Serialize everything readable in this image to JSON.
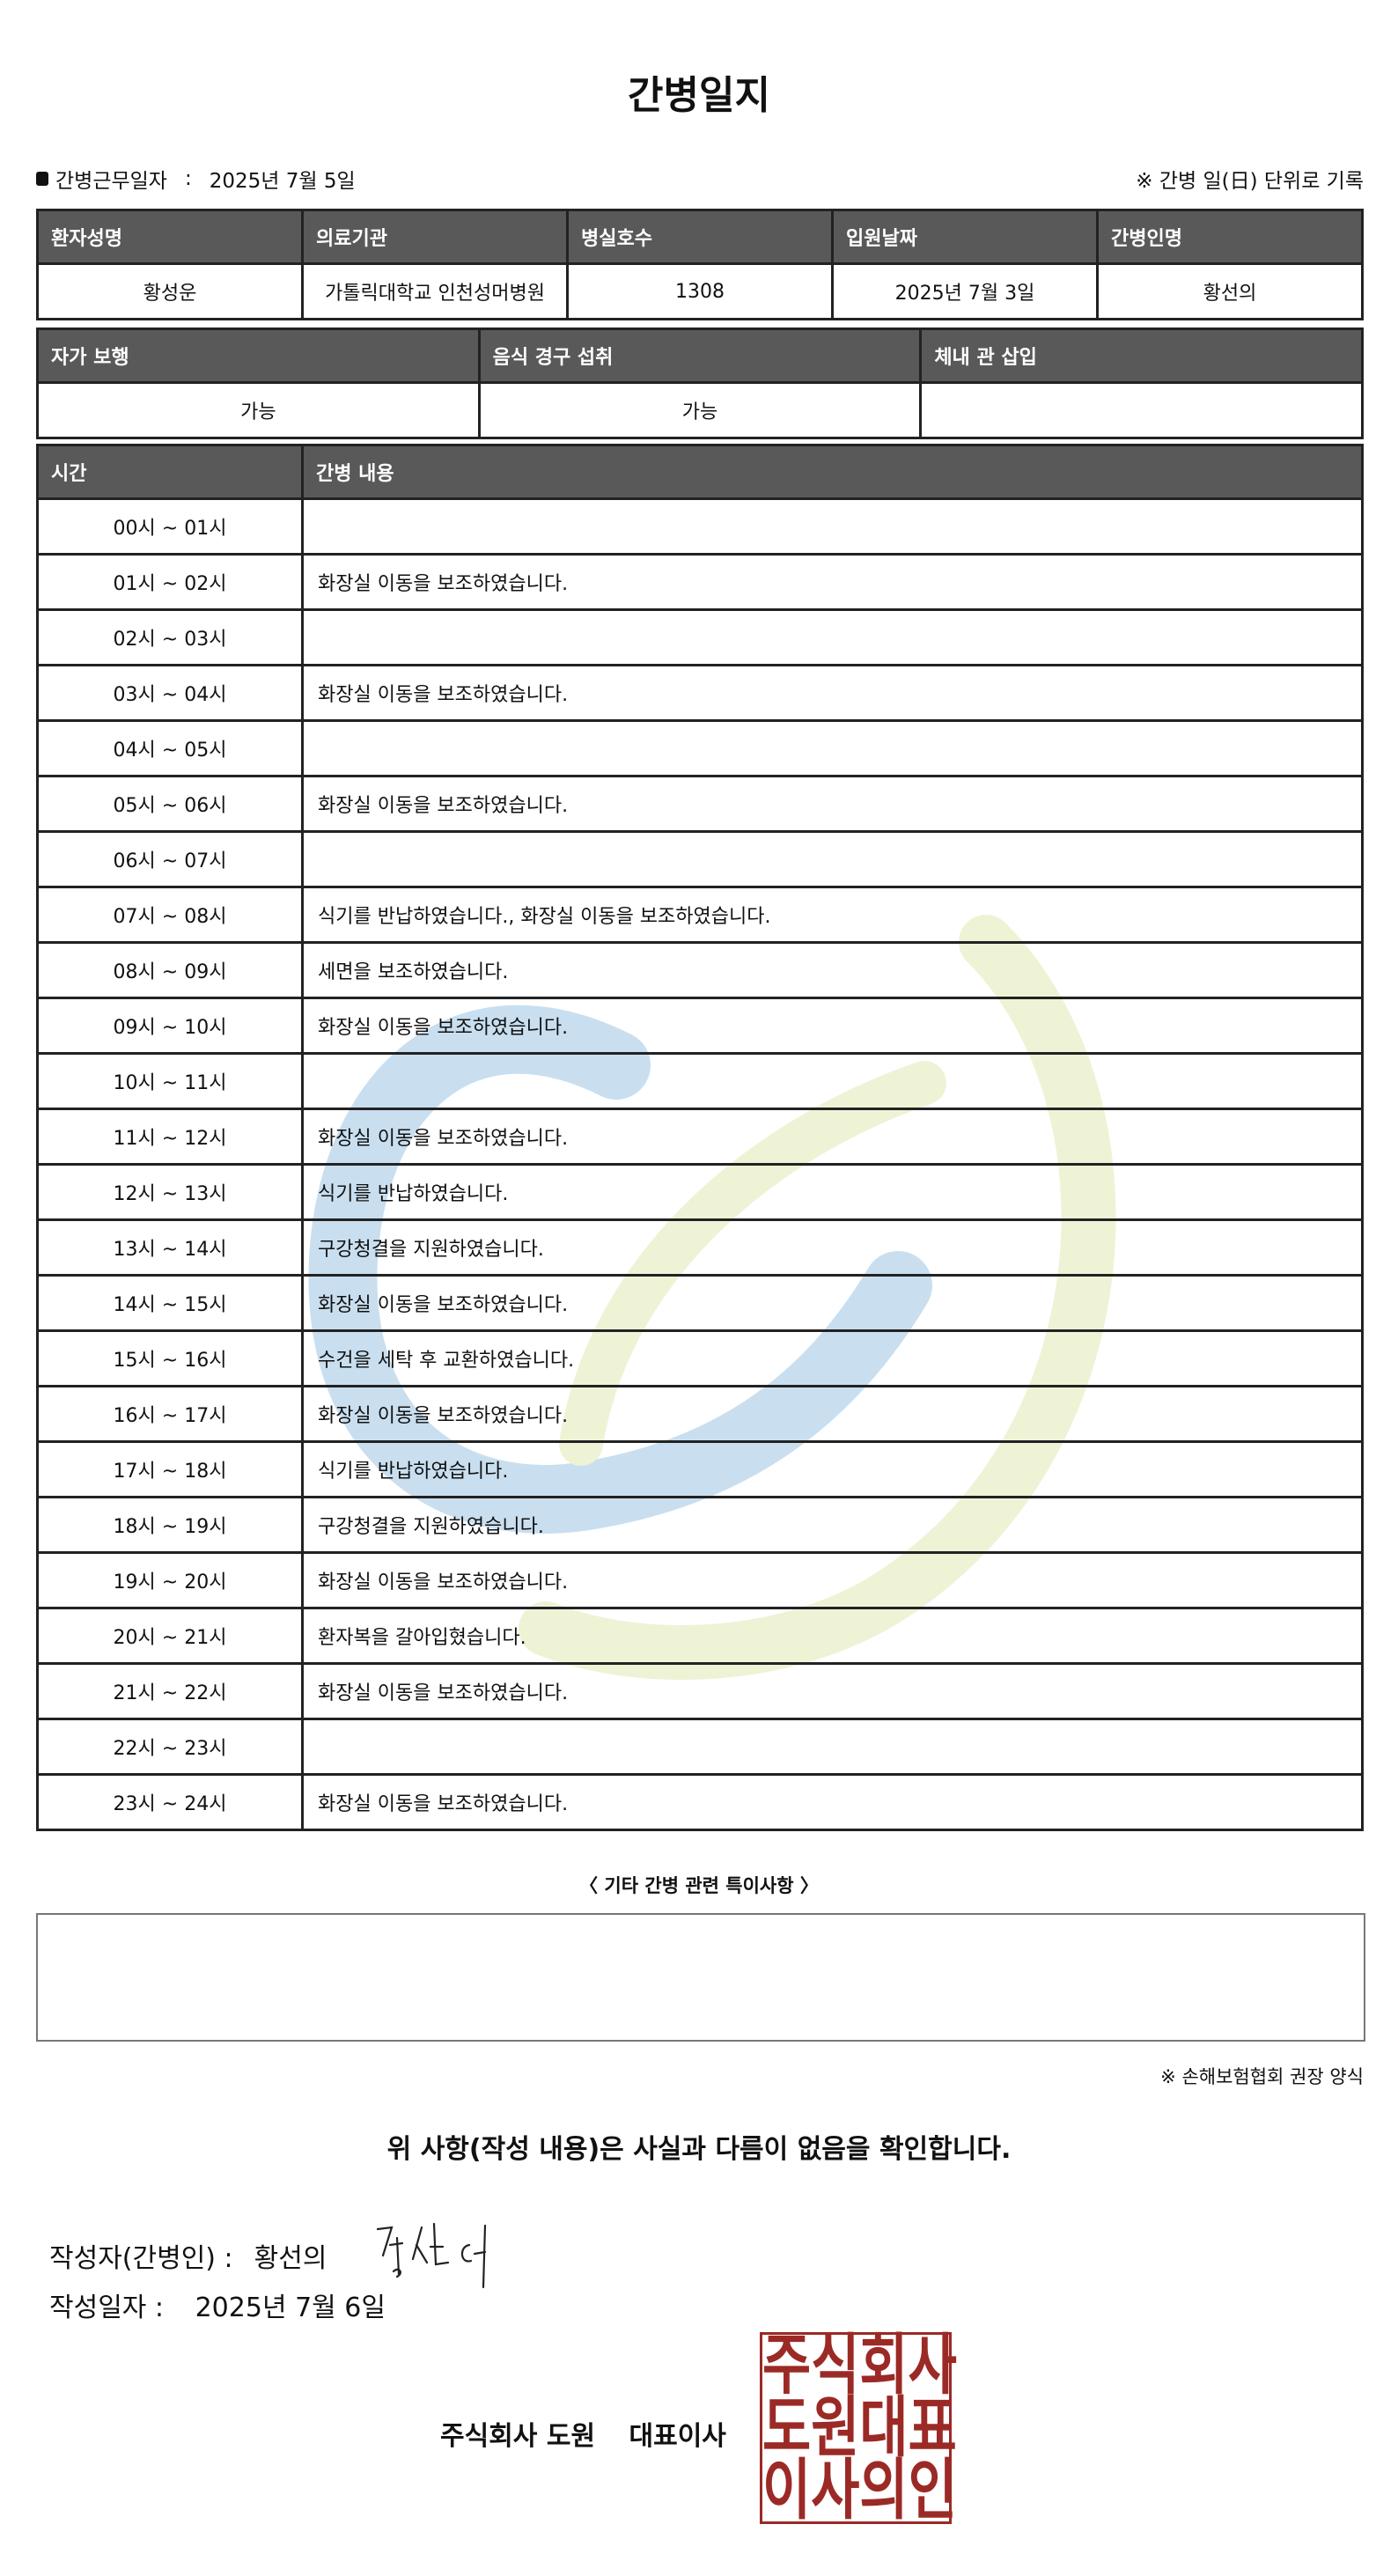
{
  "title": "간병일지",
  "info": {
    "work_date_label": "간병근무일자",
    "work_date": "2025년 7월 5일",
    "note": "※ 간병 일(日) 단위로 기록"
  },
  "patient_table": {
    "headers": [
      "환자성명",
      "의료기관",
      "병실호수",
      "입원날짜",
      "간병인명"
    ],
    "values": [
      "황성운",
      "가톨릭대학교 인천성머병원",
      "1308",
      "2025년 7월 3일",
      "황선의"
    ]
  },
  "status_table": {
    "headers": [
      "자가 보행",
      "음식 경구 섭취",
      "체내 관 삽입"
    ],
    "values": [
      "가능",
      "가능",
      ""
    ]
  },
  "care_table": {
    "headers": [
      "시간",
      "간병 내용"
    ],
    "rows": [
      {
        "time": "00시 ~ 01시",
        "content": ""
      },
      {
        "time": "01시 ~ 02시",
        "content": "화장실 이동을 보조하였습니다."
      },
      {
        "time": "02시 ~ 03시",
        "content": ""
      },
      {
        "time": "03시 ~ 04시",
        "content": "화장실 이동을 보조하였습니다."
      },
      {
        "time": "04시 ~ 05시",
        "content": ""
      },
      {
        "time": "05시 ~ 06시",
        "content": "화장실 이동을 보조하였습니다."
      },
      {
        "time": "06시 ~ 07시",
        "content": ""
      },
      {
        "time": "07시 ~ 08시",
        "content": "식기를 반납하였습니다., 화장실 이동을 보조하였습니다."
      },
      {
        "time": "08시 ~ 09시",
        "content": "세면을 보조하였습니다."
      },
      {
        "time": "09시 ~ 10시",
        "content": "화장실 이동을 보조하였습니다."
      },
      {
        "time": "10시 ~ 11시",
        "content": ""
      },
      {
        "time": "11시 ~ 12시",
        "content": "화장실 이동을 보조하였습니다."
      },
      {
        "time": "12시 ~ 13시",
        "content": "식기를 반납하였습니다."
      },
      {
        "time": "13시 ~ 14시",
        "content": "구강청결을 지원하였습니다."
      },
      {
        "time": "14시 ~ 15시",
        "content": "화장실 이동을 보조하였습니다."
      },
      {
        "time": "15시 ~ 16시",
        "content": "수건을 세탁 후 교환하였습니다."
      },
      {
        "time": "16시 ~ 17시",
        "content": "화장실 이동을 보조하였습니다."
      },
      {
        "time": "17시 ~ 18시",
        "content": "식기를 반납하였습니다."
      },
      {
        "time": "18시 ~ 19시",
        "content": "구강청결을 지원하였습니다."
      },
      {
        "time": "19시 ~ 20시",
        "content": "화장실 이동을 보조하였습니다."
      },
      {
        "time": "20시 ~ 21시",
        "content": "환자복을 갈아입혔습니다."
      },
      {
        "time": "21시 ~ 22시",
        "content": "화장실 이동을 보조하였습니다."
      },
      {
        "time": "22시 ~ 23시",
        "content": ""
      },
      {
        "time": "23시 ~ 24시",
        "content": "화장실 이동을 보조하였습니다."
      }
    ]
  },
  "notes": {
    "title": "〈 기타 간병 관련 특이사항 〉",
    "content": ""
  },
  "form_note": "※ 손해보험협회 권장 양식",
  "confirmation": "위 사항(작성 내용)은 사실과 다름이 없음을 확인합니다.",
  "writer": {
    "label": "작성자(간병인) :",
    "name": "황선의",
    "signature": "황선의"
  },
  "written_date": {
    "label": "작성일자 :",
    "value": "2025년 7월 6일"
  },
  "company": {
    "name": "주식회사 도원",
    "title": "대표이사"
  },
  "seal": {
    "text": "주식회사도원대표이사의인",
    "color": "#9b2a26"
  },
  "colors": {
    "header_bg": "#595959",
    "watermark_blue": "#c9dff0",
    "watermark_green": "#eef3d6"
  }
}
